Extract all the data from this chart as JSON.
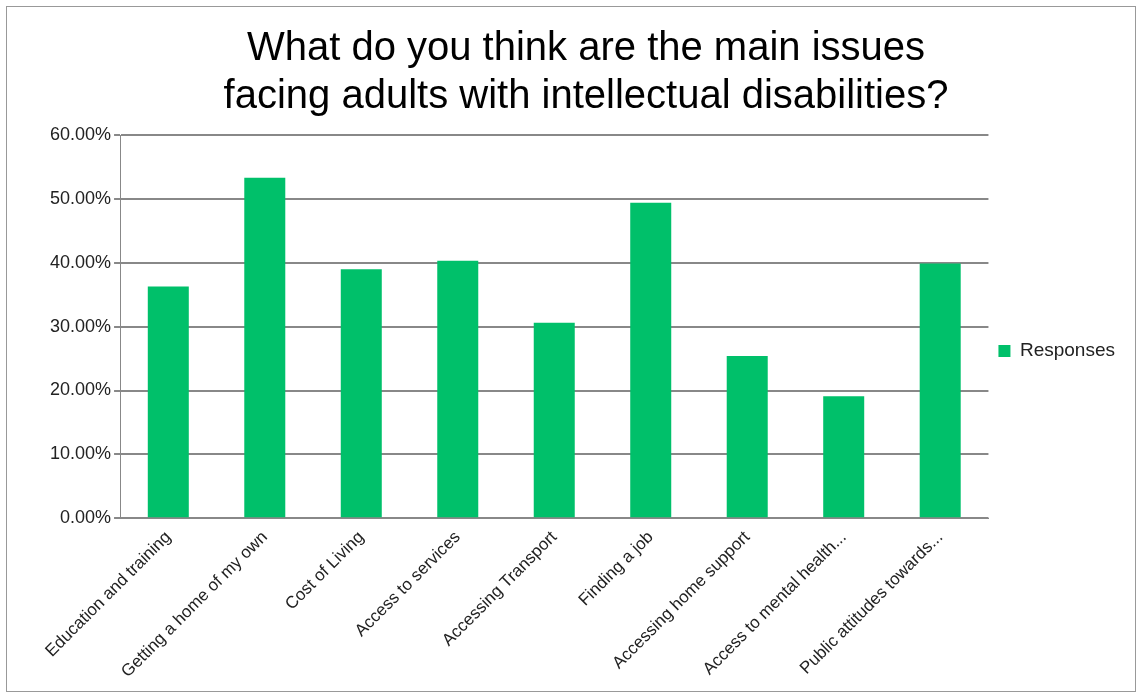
{
  "chart_data": {
    "type": "bar",
    "title": [
      "What do you think are the main issues",
      "facing adults with intellectual disabilities?"
    ],
    "categories": [
      "Education and training",
      "Getting a home of my own",
      "Cost of Living",
      "Access to services",
      "Accessing Transport",
      "Finding a job",
      "Accessing home support",
      "Access to mental health...",
      "Public attitudes towards..."
    ],
    "series": [
      {
        "name": "Responses",
        "color": "#00c06a",
        "values": [
          36.3,
          53.3,
          39.0,
          40.3,
          30.6,
          49.4,
          25.4,
          19.1,
          39.9
        ]
      }
    ],
    "ylim": [
      0,
      60
    ],
    "yticks": [
      {
        "value": 0,
        "label": "0.00%"
      },
      {
        "value": 10,
        "label": "10.00%"
      },
      {
        "value": 20,
        "label": "20.00%"
      },
      {
        "value": 30,
        "label": "30.00%"
      },
      {
        "value": 40,
        "label": "40.00%"
      },
      {
        "value": 50,
        "label": "50.00%"
      },
      {
        "value": 60,
        "label": "60.00%"
      }
    ],
    "grid": "y",
    "legend": "right"
  }
}
